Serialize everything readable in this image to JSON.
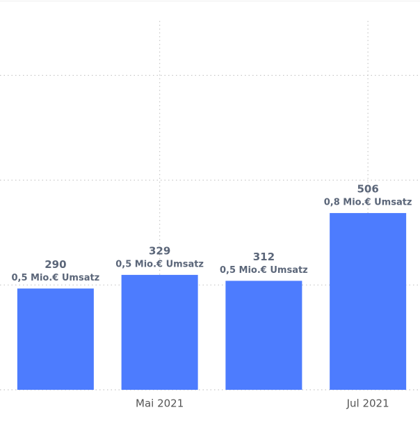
{
  "chart_data": {
    "type": "bar",
    "categories": [
      null,
      "Mai 2021",
      null,
      "Jul 2021"
    ],
    "values": [
      290,
      329,
      312,
      506
    ],
    "sublabels": [
      "0,5 Mio.€ Umsatz",
      "0,5 Mio.€ Umsatz",
      "0,5 Mio.€ Umsatz",
      "0,8 Mio.€ Umsatz"
    ],
    "color": "#4d7cfe",
    "ylim": [
      0,
      1100
    ],
    "yticks": [
      0,
      300,
      600,
      900
    ],
    "grid": true
  }
}
